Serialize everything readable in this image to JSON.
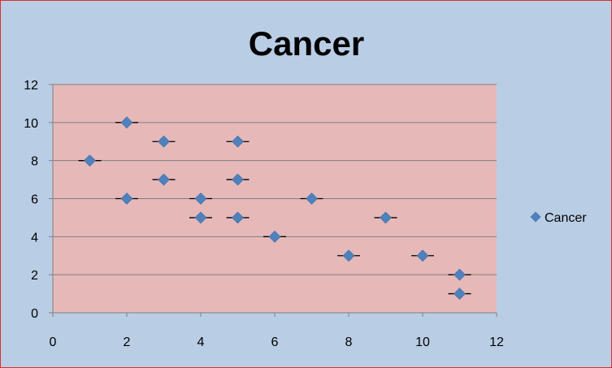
{
  "chart_data": {
    "type": "scatter",
    "title": "Cancer",
    "xlabel": "",
    "ylabel": "",
    "xlim": [
      0,
      12
    ],
    "ylim": [
      0,
      12
    ],
    "xticks": [
      0,
      2,
      4,
      6,
      8,
      10,
      12
    ],
    "yticks": [
      0,
      2,
      4,
      6,
      8,
      10,
      12
    ],
    "grid": "horizontal",
    "legend": "right",
    "error_bars": "horizontal",
    "colors": {
      "background": "#b9cde5",
      "plot_area": "#e6b9b8",
      "marker": "#4f81bd",
      "gridline": "#7f7f7f",
      "border": "#e0302a"
    },
    "series": [
      {
        "name": "Cancer",
        "marker": "diamond",
        "points": [
          {
            "x": 1,
            "y": 8
          },
          {
            "x": 2,
            "y": 10
          },
          {
            "x": 2,
            "y": 6
          },
          {
            "x": 3,
            "y": 9
          },
          {
            "x": 3,
            "y": 7
          },
          {
            "x": 4,
            "y": 6
          },
          {
            "x": 4,
            "y": 5
          },
          {
            "x": 5,
            "y": 9
          },
          {
            "x": 5,
            "y": 7
          },
          {
            "x": 5,
            "y": 5
          },
          {
            "x": 6,
            "y": 4
          },
          {
            "x": 7,
            "y": 6
          },
          {
            "x": 8,
            "y": 3
          },
          {
            "x": 9,
            "y": 5
          },
          {
            "x": 10,
            "y": 3
          },
          {
            "x": 11,
            "y": 2
          },
          {
            "x": 11,
            "y": 1
          }
        ]
      }
    ]
  }
}
